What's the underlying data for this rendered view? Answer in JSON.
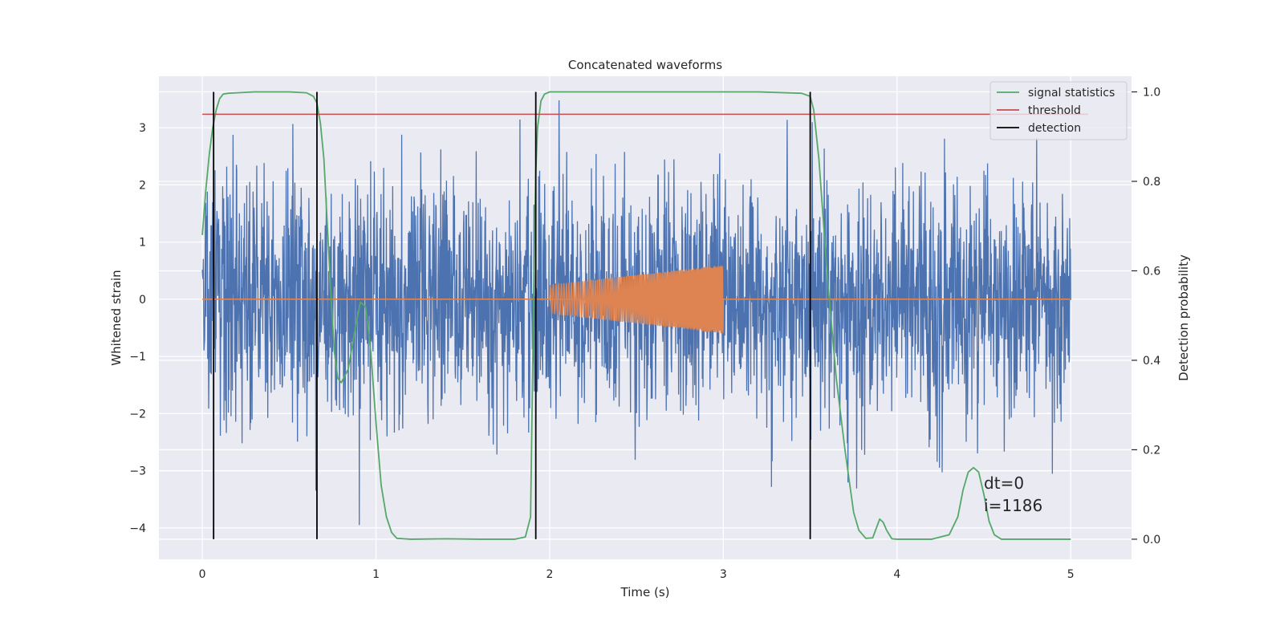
{
  "chart_data": {
    "type": "line",
    "title": "Concatenated waveforms",
    "xlabel": "Time (s)",
    "ylabel": "Whitened strain",
    "y2label": "Detection probability",
    "xlim": [
      -0.25,
      5.35
    ],
    "ylim": [
      -4.55,
      3.9
    ],
    "y2lim": [
      -0.045,
      1.035
    ],
    "x_ticks": [
      0,
      1,
      2,
      3,
      4,
      5
    ],
    "x_tick_labels": [
      "0",
      "1",
      "2",
      "3",
      "4",
      "5"
    ],
    "y_ticks": [
      3,
      2,
      1,
      0,
      -1,
      -2,
      -3,
      -4
    ],
    "y_tick_labels": [
      "3",
      "2",
      "1",
      "0",
      "−1",
      "−2",
      "−3",
      "−4"
    ],
    "y2_ticks": [
      1.0,
      0.8,
      0.6,
      0.4,
      0.2,
      0.0
    ],
    "y2_tick_labels": [
      "1.0",
      "0.8",
      "0.6",
      "0.4",
      "0.2",
      "0.0"
    ],
    "grid": true,
    "legend": {
      "placement": "top-right",
      "entries": [
        {
          "name": "signal statistics",
          "color": "#55a868"
        },
        {
          "name": "threshold",
          "color": "#c44e52"
        },
        {
          "name": "detection",
          "color": "#000000"
        }
      ]
    },
    "series": [
      {
        "name": "",
        "kind": "noise",
        "color": "#4c72b0",
        "x_range": [
          0,
          5
        ],
        "std": 1.0,
        "spike_range": [
          -4.1,
          3.55
        ]
      },
      {
        "name": "",
        "kind": "chirp",
        "color": "#dd8452",
        "x_range": [
          2,
          3
        ],
        "amplitude_start": 0.25,
        "amplitude_end": 0.6,
        "baseline_y": 0
      },
      {
        "name": "signal statistics",
        "color": "#55a868",
        "axis": "right",
        "x": [
          0.0,
          0.02,
          0.04,
          0.06,
          0.08,
          0.1,
          0.12,
          0.15,
          0.2,
          0.3,
          0.4,
          0.5,
          0.6,
          0.64,
          0.66,
          0.68,
          0.7,
          0.72,
          0.74,
          0.76,
          0.78,
          0.8,
          0.84,
          0.88,
          0.91,
          0.94,
          0.97,
          1.0,
          1.03,
          1.06,
          1.09,
          1.12,
          1.2,
          1.4,
          1.6,
          1.8,
          1.86,
          1.89,
          1.91,
          1.92,
          1.93,
          1.95,
          1.97,
          2.0,
          2.2,
          2.5,
          2.8,
          3.0,
          3.2,
          3.45,
          3.5,
          3.52,
          3.55,
          3.6,
          3.65,
          3.7,
          3.75,
          3.78,
          3.82,
          3.86,
          3.9,
          3.92,
          3.94,
          3.97,
          4.0,
          4.1,
          4.2,
          4.3,
          4.35,
          4.38,
          4.41,
          4.44,
          4.47,
          4.5,
          4.53,
          4.56,
          4.6,
          4.7,
          4.8,
          4.9,
          5.0
        ],
        "values": [
          0.68,
          0.78,
          0.86,
          0.92,
          0.96,
          0.985,
          0.995,
          0.997,
          0.998,
          1.0,
          1.0,
          1.0,
          0.998,
          0.99,
          0.975,
          0.93,
          0.85,
          0.7,
          0.55,
          0.42,
          0.36,
          0.35,
          0.38,
          0.47,
          0.53,
          0.52,
          0.42,
          0.26,
          0.12,
          0.05,
          0.015,
          0.002,
          0.0,
          0.001,
          0.0,
          0.0,
          0.005,
          0.05,
          0.6,
          0.82,
          0.92,
          0.98,
          0.995,
          1.0,
          1.0,
          1.0,
          1.0,
          1.0,
          1.0,
          0.997,
          0.99,
          0.96,
          0.85,
          0.58,
          0.36,
          0.2,
          0.06,
          0.02,
          0.002,
          0.003,
          0.045,
          0.038,
          0.02,
          0.001,
          0.0,
          0.0,
          0.0,
          0.01,
          0.05,
          0.11,
          0.15,
          0.16,
          0.15,
          0.1,
          0.04,
          0.01,
          0.0,
          0.0,
          0.0,
          0.0,
          0.0
        ]
      },
      {
        "name": "threshold",
        "color": "#c44e52",
        "axis": "right",
        "value": 0.95,
        "x_range": [
          0,
          5.1
        ]
      },
      {
        "name": "detection",
        "color": "#000000",
        "kind": "vlines",
        "axis": "right",
        "x": [
          0.065,
          0.66,
          1.92,
          3.5
        ],
        "y_range": [
          0.0,
          1.0
        ]
      }
    ],
    "annotations": [
      {
        "text": "dt=0",
        "x": 4.5,
        "y": 0.113
      },
      {
        "text": "i=1186",
        "x": 4.5,
        "y": 0.063
      }
    ]
  }
}
